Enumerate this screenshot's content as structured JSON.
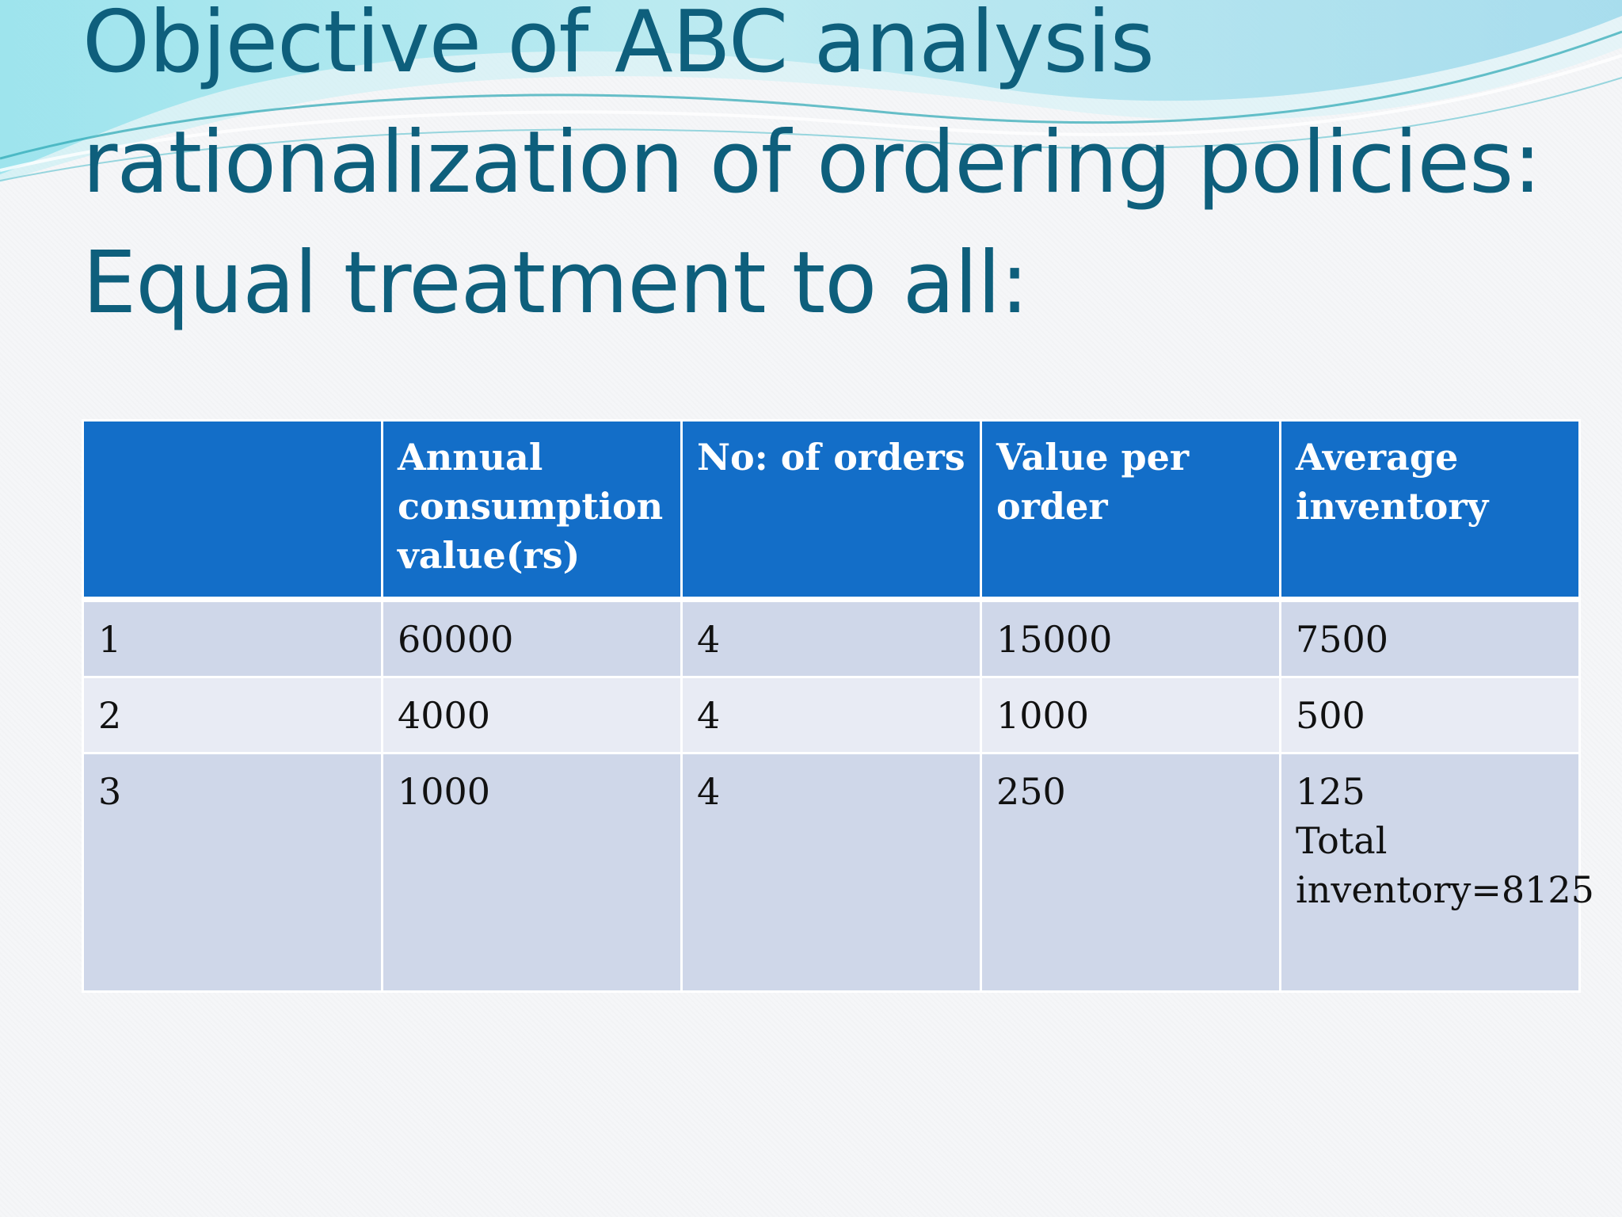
{
  "slide": {
    "title_lines": [
      "Objective of ABC analysis",
      "rationalization of ordering policies:",
      "Equal treatment to all:"
    ]
  },
  "table": {
    "headers": [
      "",
      "Annual consumption value(rs)",
      "No: of orders",
      "Value per order",
      "Average inventory"
    ],
    "rows": [
      [
        "1",
        "60000",
        "4",
        "15000",
        "7500"
      ],
      [
        "2",
        "4000",
        "4",
        "1000",
        "500"
      ],
      [
        "3",
        "1000",
        "4",
        "250",
        "125"
      ]
    ],
    "total_note": "Total inventory=8125"
  },
  "colors": {
    "title": "#0e5f7c",
    "header_bg": "#136ec8",
    "row_odd_bg": "#cfd7e9",
    "row_even_bg": "#e8ebf4"
  }
}
